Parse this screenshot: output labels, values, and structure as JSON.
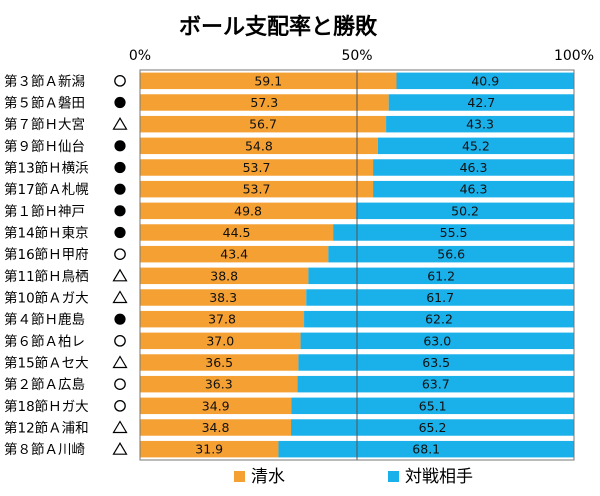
{
  "chart_data": {
    "type": "bar",
    "stacked": true,
    "orientation": "horizontal",
    "title": "ボール支配率と勝敗",
    "categories": [
      "第３節Ａ新潟",
      "第５節Ａ磐田",
      "第７節Ｈ大宮",
      "第９節Ｈ仙台",
      "第13節Ｈ横浜",
      "第17節Ａ札幌",
      "第１節Ｈ神戸",
      "第14節Ｈ東京",
      "第16節Ｈ甲府",
      "第11節Ｈ鳥栖",
      "第10節Ａガ大",
      "第４節Ｈ鹿島",
      "第６節Ａ柏レ",
      "第15節Ａセ大",
      "第２節Ａ広島",
      "第18節Ｈガ大",
      "第12節Ａ浦和",
      "第８節Ａ川崎"
    ],
    "results": [
      "○",
      "●",
      "△",
      "●",
      "●",
      "●",
      "●",
      "●",
      "○",
      "△",
      "△",
      "●",
      "○",
      "△",
      "○",
      "○",
      "△",
      "△"
    ],
    "series": [
      {
        "name": "清水",
        "color": "#f5a033",
        "values": [
          59.1,
          57.3,
          56.7,
          54.8,
          53.7,
          53.7,
          49.8,
          44.5,
          43.4,
          38.8,
          38.3,
          37.8,
          37.0,
          36.5,
          36.3,
          34.9,
          34.8,
          31.9
        ]
      },
      {
        "name": "対戦相手",
        "color": "#1ab0ea",
        "values": [
          40.9,
          42.7,
          43.3,
          45.2,
          46.3,
          46.3,
          50.2,
          55.5,
          56.6,
          61.2,
          61.7,
          62.2,
          63.0,
          63.5,
          63.7,
          65.1,
          65.2,
          68.1
        ]
      }
    ],
    "xticks": [
      "0%",
      "50%",
      "100%"
    ],
    "xlim": [
      0,
      100
    ],
    "legend_position": "bottom"
  }
}
